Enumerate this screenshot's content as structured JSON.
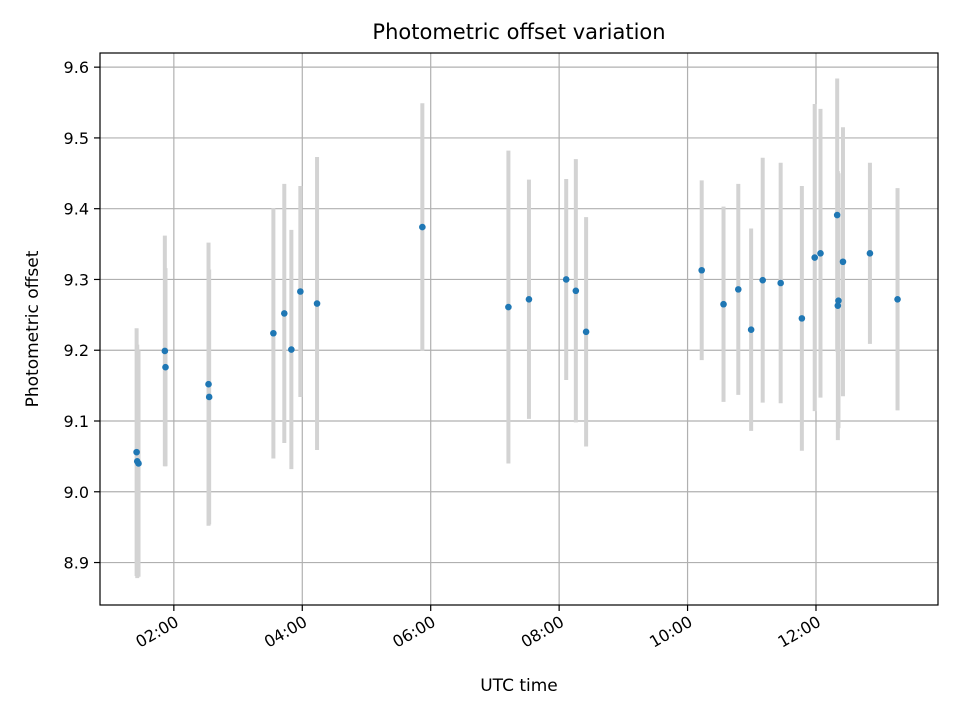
{
  "chart_data": {
    "type": "scatter",
    "title": "Photometric offset variation",
    "xlabel": "UTC time",
    "ylabel": "Photometric offset",
    "x_unit": "hours (UTC)",
    "xlim": [
      0.85,
      13.9
    ],
    "ylim": [
      8.84,
      9.62
    ],
    "x_ticks": [
      {
        "value": 2,
        "label": "02:00"
      },
      {
        "value": 4,
        "label": "04:00"
      },
      {
        "value": 6,
        "label": "06:00"
      },
      {
        "value": 8,
        "label": "08:00"
      },
      {
        "value": 10,
        "label": "10:00"
      },
      {
        "value": 12,
        "label": "12:00"
      }
    ],
    "y_ticks": [
      {
        "value": 8.9,
        "label": "8.9"
      },
      {
        "value": 9.0,
        "label": "9.0"
      },
      {
        "value": 9.1,
        "label": "9.1"
      },
      {
        "value": 9.2,
        "label": "9.2"
      },
      {
        "value": 9.3,
        "label": "9.3"
      },
      {
        "value": 9.4,
        "label": "9.4"
      },
      {
        "value": 9.5,
        "label": "9.5"
      },
      {
        "value": 9.6,
        "label": "9.6"
      }
    ],
    "grid": true,
    "point_color": "#1f77b4",
    "errorbar_color": "#d3d3d3",
    "points": [
      {
        "x": 1.42,
        "y": 9.056,
        "err": 0.175
      },
      {
        "x": 1.43,
        "y": 9.043,
        "err": 0.165
      },
      {
        "x": 1.45,
        "y": 9.04,
        "err": 0.16
      },
      {
        "x": 1.86,
        "y": 9.199,
        "err": 0.163
      },
      {
        "x": 1.87,
        "y": 9.176,
        "err": 0.14
      },
      {
        "x": 2.54,
        "y": 9.152,
        "err": 0.2
      },
      {
        "x": 2.55,
        "y": 9.134,
        "err": 0.18
      },
      {
        "x": 3.55,
        "y": 9.224,
        "err": 0.177
      },
      {
        "x": 3.72,
        "y": 9.252,
        "err": 0.183
      },
      {
        "x": 3.83,
        "y": 9.201,
        "err": 0.169
      },
      {
        "x": 3.97,
        "y": 9.283,
        "err": 0.149
      },
      {
        "x": 4.23,
        "y": 9.266,
        "err": 0.207
      },
      {
        "x": 5.87,
        "y": 9.374,
        "err": 0.175
      },
      {
        "x": 7.21,
        "y": 9.261,
        "err": 0.221
      },
      {
        "x": 7.53,
        "y": 9.272,
        "err": 0.169
      },
      {
        "x": 8.11,
        "y": 9.3,
        "err": 0.142
      },
      {
        "x": 8.26,
        "y": 9.284,
        "err": 0.186
      },
      {
        "x": 8.42,
        "y": 9.226,
        "err": 0.162
      },
      {
        "x": 10.22,
        "y": 9.313,
        "err": 0.127
      },
      {
        "x": 10.56,
        "y": 9.265,
        "err": 0.138
      },
      {
        "x": 10.79,
        "y": 9.286,
        "err": 0.149
      },
      {
        "x": 10.99,
        "y": 9.229,
        "err": 0.143
      },
      {
        "x": 11.17,
        "y": 9.299,
        "err": 0.173
      },
      {
        "x": 11.45,
        "y": 9.295,
        "err": 0.17
      },
      {
        "x": 11.78,
        "y": 9.245,
        "err": 0.187
      },
      {
        "x": 11.98,
        "y": 9.331,
        "err": 0.217
      },
      {
        "x": 12.07,
        "y": 9.337,
        "err": 0.204
      },
      {
        "x": 12.33,
        "y": 9.391,
        "err": 0.193
      },
      {
        "x": 12.34,
        "y": 9.263,
        "err": 0.19
      },
      {
        "x": 12.35,
        "y": 9.27,
        "err": 0.18
      },
      {
        "x": 12.42,
        "y": 9.325,
        "err": 0.19
      },
      {
        "x": 12.84,
        "y": 9.337,
        "err": 0.128
      },
      {
        "x": 13.27,
        "y": 9.272,
        "err": 0.157
      }
    ]
  }
}
